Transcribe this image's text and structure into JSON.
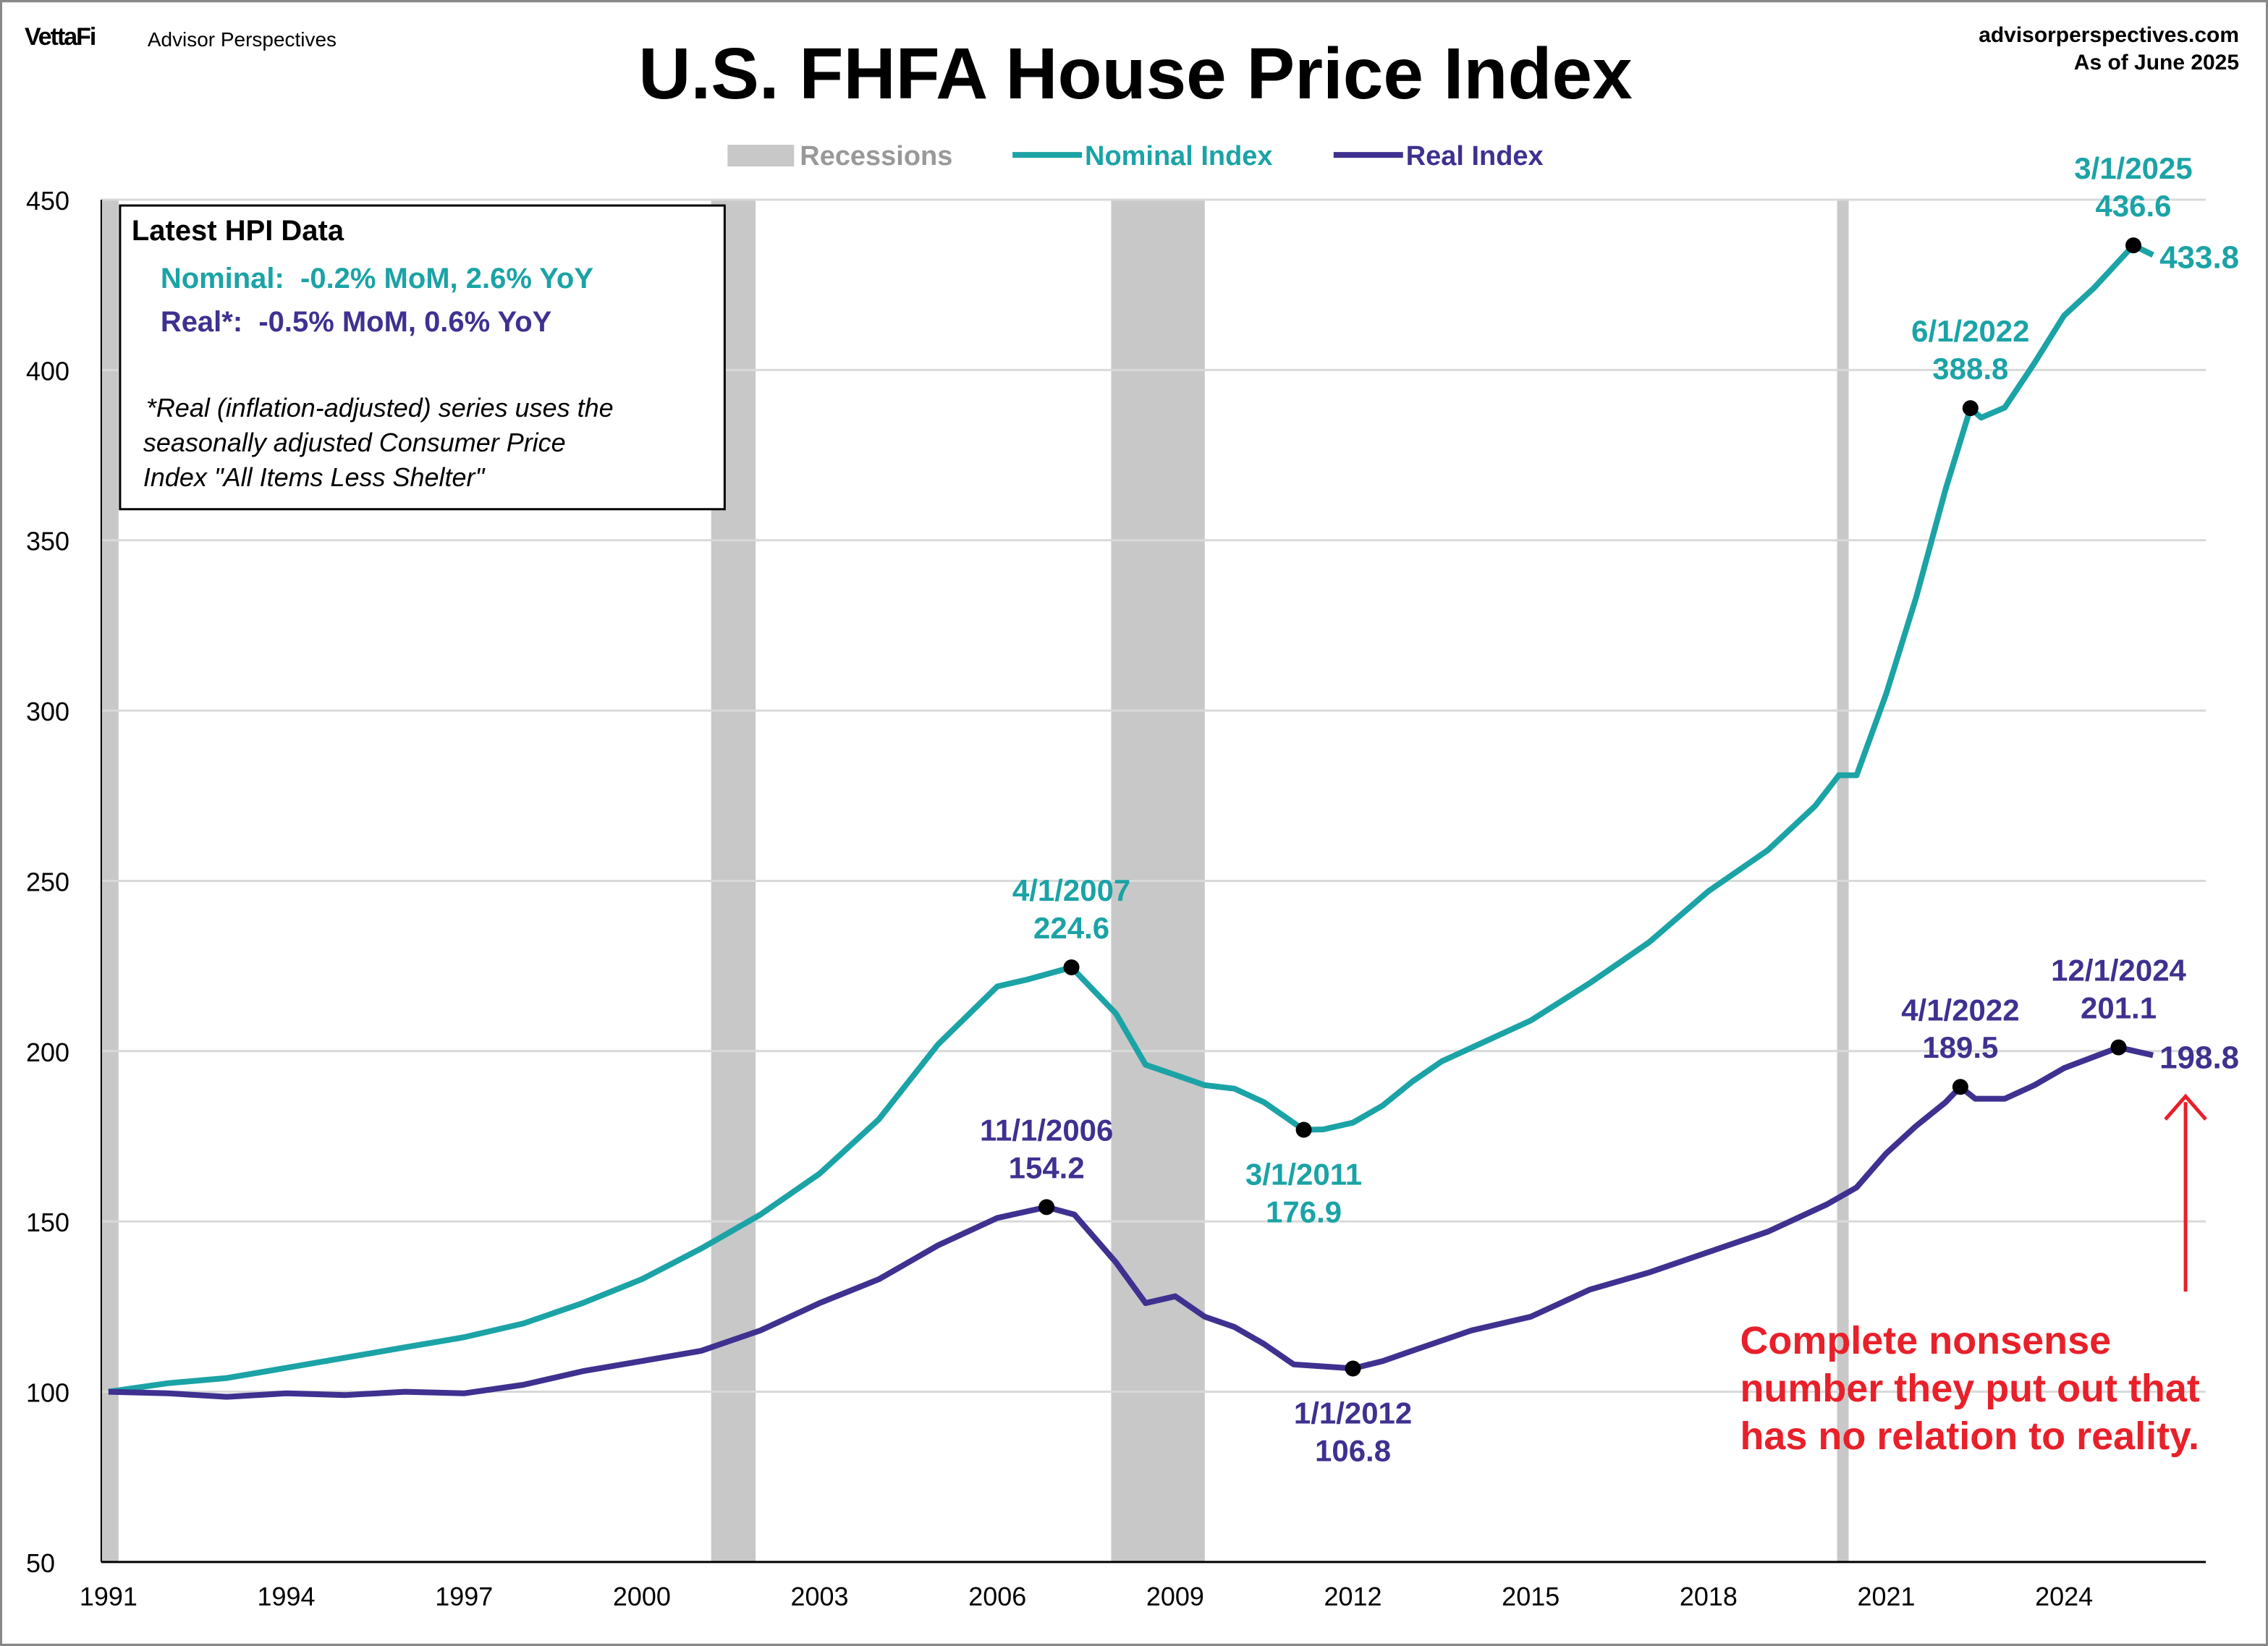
{
  "header": {
    "logo": "VettaFi",
    "brand": "Advisor Perspectives",
    "site": "advisorperspectives.com",
    "as_of": "As of June 2025"
  },
  "chart_data": {
    "type": "line",
    "title": "U.S. FHFA House Price Index",
    "xlabel": "",
    "ylabel": "",
    "xlim": [
      1991,
      2026.5
    ],
    "ylim": [
      50,
      450
    ],
    "yticks": [
      50,
      100,
      150,
      200,
      250,
      300,
      350,
      400,
      450
    ],
    "xticks": [
      1991,
      1994,
      1997,
      2000,
      2003,
      2006,
      2009,
      2012,
      2015,
      2018,
      2021,
      2024
    ],
    "grid": true,
    "legend_position": "top-center",
    "legend": [
      {
        "label": "Recessions",
        "color": "#c8c8c8",
        "kind": "bar"
      },
      {
        "label": "Nominal Index",
        "color": "#1ba3a6",
        "kind": "line"
      },
      {
        "label": "Real Index",
        "color": "#3e3190",
        "kind": "line"
      }
    ],
    "recessions": [
      [
        1990.58,
        1991.17
      ],
      [
        2001.17,
        2001.92
      ],
      [
        2007.92,
        2009.5
      ],
      [
        2020.17,
        2020.33
      ]
    ],
    "series": [
      {
        "name": "Nominal Index",
        "color": "#1ba3a6",
        "x": [
          1991,
          1992,
          1993,
          1994,
          1995,
          1996,
          1997,
          1998,
          1999,
          2000,
          2001,
          2002,
          2003,
          2004,
          2005,
          2006,
          2006.5,
          2007.25,
          2008,
          2008.5,
          2009,
          2009.5,
          2010,
          2010.5,
          2011.17,
          2011.5,
          2012,
          2012.5,
          2013,
          2013.5,
          2014,
          2015,
          2016,
          2017,
          2018,
          2019,
          2019.8,
          2020.2,
          2020.5,
          2021,
          2021.5,
          2022,
          2022.42,
          2022.6,
          2023,
          2023.5,
          2024,
          2024.5,
          2025.17,
          2025.5
        ],
        "y": [
          100,
          102.5,
          104,
          107,
          110,
          113,
          116,
          120,
          126,
          133,
          142,
          152,
          164,
          180,
          202,
          219,
          221,
          224.6,
          211,
          196,
          193,
          190,
          189,
          185,
          176.9,
          177,
          179,
          184,
          191,
          197,
          201,
          209,
          220,
          232,
          247,
          259,
          272,
          281,
          281,
          305,
          333,
          365,
          388.8,
          386,
          389,
          402,
          416,
          424,
          436.6,
          433.8
        ]
      },
      {
        "name": "Real Index",
        "color": "#3e3190",
        "x": [
          1991,
          1992,
          1993,
          1994,
          1995,
          1996,
          1997,
          1998,
          1999,
          2000,
          2001,
          2002,
          2003,
          2004,
          2005,
          2006,
          2006.83,
          2007.3,
          2008,
          2008.5,
          2009,
          2009.5,
          2010,
          2010.5,
          2011,
          2012,
          2012.5,
          2013,
          2014,
          2015,
          2016,
          2017,
          2018,
          2019,
          2020,
          2020.5,
          2021,
          2021.5,
          2022,
          2022.25,
          2022.5,
          2023,
          2023.5,
          2024,
          2024.92,
          2025.5
        ],
        "y": [
          100,
          99.5,
          98.5,
          99.5,
          99,
          100,
          99.5,
          102,
          106,
          109,
          112,
          118,
          126,
          133,
          143,
          151,
          154.2,
          152,
          138,
          126,
          128,
          122,
          119,
          114,
          108,
          106.8,
          109,
          112,
          118,
          122,
          130,
          135,
          141,
          147,
          155,
          160,
          170,
          178,
          185,
          189.5,
          186,
          186,
          190,
          195,
          201.1,
          198.8
        ]
      }
    ],
    "annotations": [
      {
        "series": 0,
        "x": 2007.25,
        "y": 224.6,
        "date": "4/1/2007",
        "value": "224.6",
        "pos": "above"
      },
      {
        "series": 0,
        "x": 2011.17,
        "y": 176.9,
        "date": "3/1/2011",
        "value": "176.9",
        "pos": "below"
      },
      {
        "series": 0,
        "x": 2022.42,
        "y": 388.8,
        "date": "6/1/2022",
        "value": "388.8",
        "pos": "above"
      },
      {
        "series": 0,
        "x": 2025.17,
        "y": 436.6,
        "date": "3/1/2025",
        "value": "436.6",
        "pos": "above"
      },
      {
        "series": 1,
        "x": 2006.83,
        "y": 154.2,
        "date": "11/1/2006",
        "value": "154.2",
        "pos": "above"
      },
      {
        "series": 1,
        "x": 2012.0,
        "y": 106.8,
        "date": "1/1/2012",
        "value": "106.8",
        "pos": "below"
      },
      {
        "series": 1,
        "x": 2022.25,
        "y": 189.5,
        "date": "4/1/2022",
        "value": "189.5",
        "pos": "above"
      },
      {
        "series": 1,
        "x": 2024.92,
        "y": 201.1,
        "date": "12/1/2024",
        "value": "201.1",
        "pos": "above"
      }
    ],
    "end_labels": [
      {
        "series": 0,
        "value": "433.8"
      },
      {
        "series": 1,
        "value": "198.8"
      }
    ],
    "info_box": {
      "title": "Latest HPI Data",
      "nominal": "Nominal:  -0.2% MoM, 2.6% YoY",
      "real": "Real*:  -0.5% MoM, 0.6% YoY",
      "note": [
        "*Real (inflation-adjusted) series uses the",
        "seasonally adjusted Consumer Price",
        "Index \"All Items Less Shelter\""
      ]
    },
    "callout": {
      "lines": [
        "Complete nonsense",
        "number they put out that",
        "has no relation to reality."
      ],
      "color": "#e8202a"
    }
  }
}
